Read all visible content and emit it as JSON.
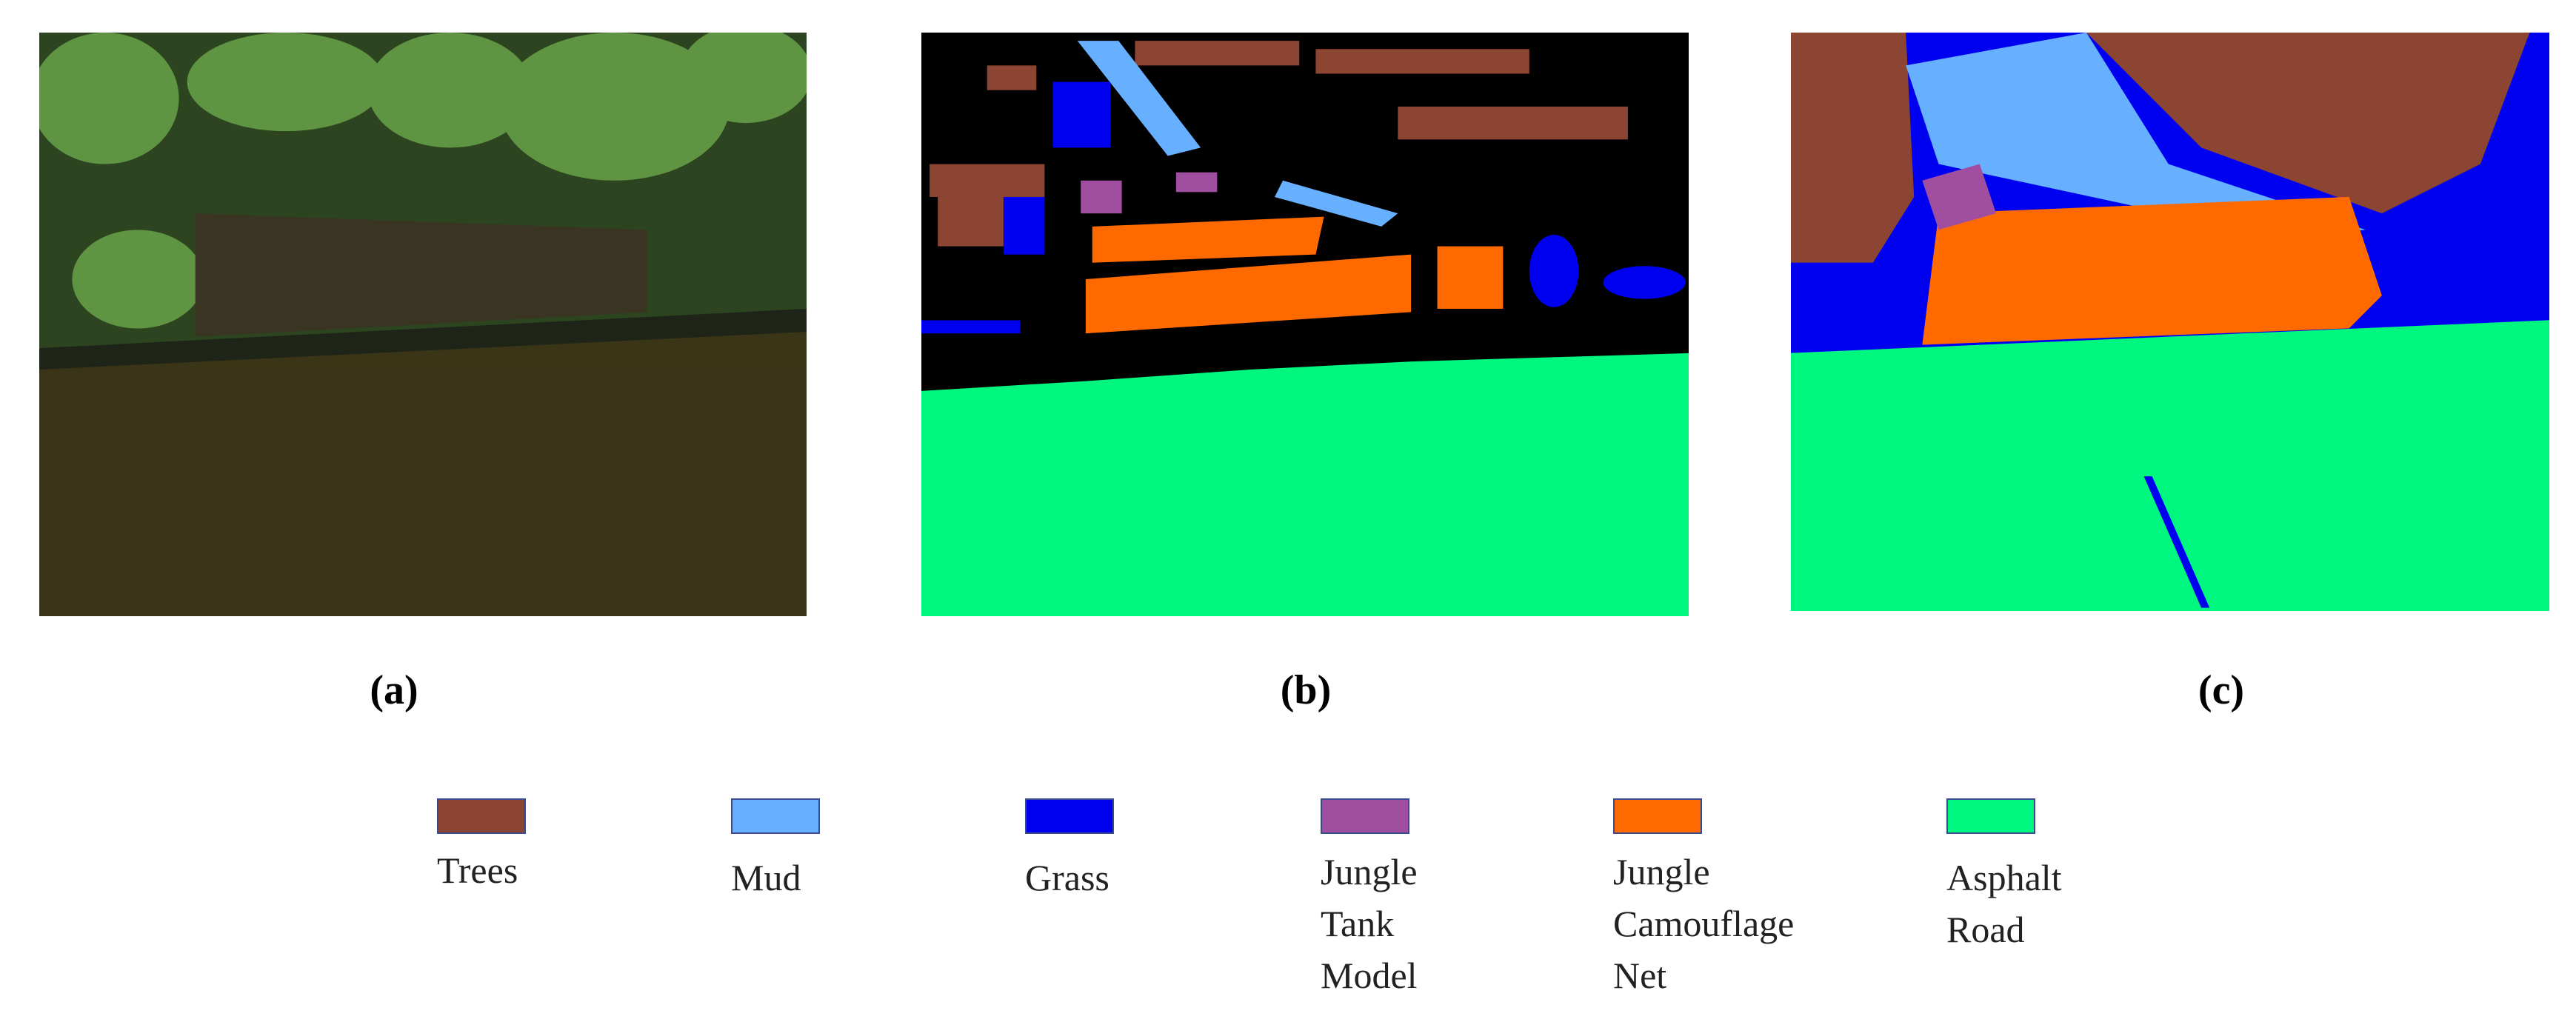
{
  "panels": [
    {
      "label": "(a)"
    },
    {
      "label": "(b)"
    },
    {
      "label": "(c)"
    }
  ],
  "legend": [
    {
      "label": "Trees",
      "color": "#8b4532"
    },
    {
      "label": "Mud",
      "color": "#66b0ff"
    },
    {
      "label": "Grass",
      "color": "#0000f0"
    },
    {
      "label": "Jungle Tank Model",
      "color": "#a04ea0"
    },
    {
      "label": "Jungle Camouflage Net",
      "color": "#ff6a00"
    },
    {
      "label": "Asphalt Road",
      "color": "#00f77f"
    }
  ]
}
